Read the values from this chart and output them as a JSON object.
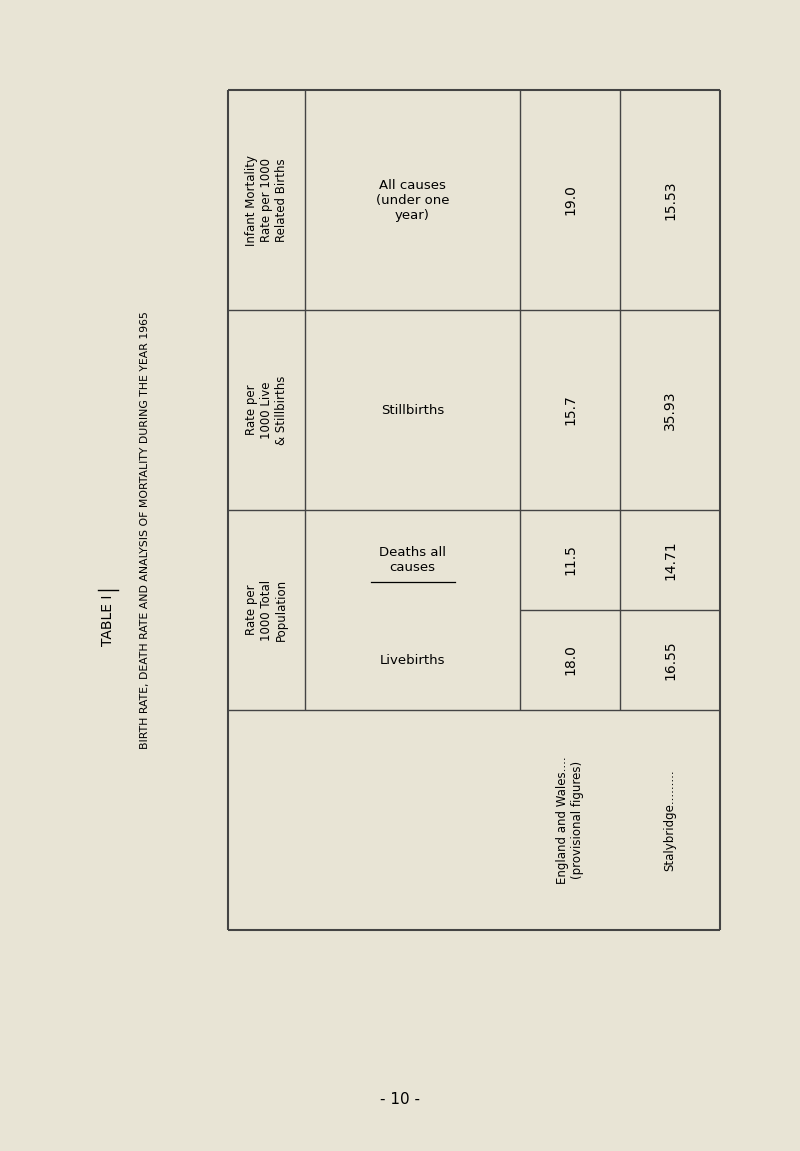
{
  "bg_color": "#e8e4d5",
  "title_table": "TABLE I",
  "title_main": "BIRTH RATE, DEATH RATE AND ANALYSIS OF MORTALITY DURING THE YEAR 1965",
  "page_number": "- 10 -",
  "table": {
    "col_headers": [
      "Infant Mortality\nRate per 1000\nRelated Births",
      "Rate per\n1000 Live\n& Stillbirths",
      "Rate per\n1000 Total\nPopulation"
    ],
    "content_labels": [
      "All causes\n(under one\nyear)",
      "Stillbirths",
      "Deaths all\ncauses",
      "Livebirths"
    ],
    "row_labels": [
      "England and Wales....\n(provisional figures)",
      "Stalybridge........."
    ],
    "values": {
      "infant_mortality": [
        "19.0",
        "15.53"
      ],
      "stillbirths": [
        "15.7",
        "35.93"
      ],
      "deaths_all": [
        "11.5",
        "14.71"
      ],
      "livebirths": [
        "18.0",
        "16.55"
      ]
    }
  }
}
